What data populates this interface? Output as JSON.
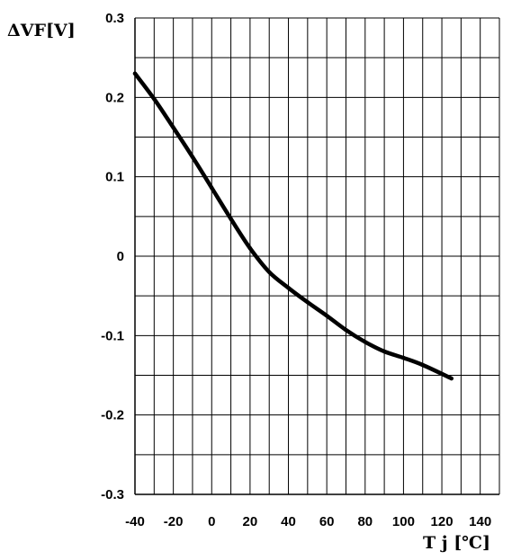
{
  "chart_data": {
    "type": "line",
    "title": "",
    "xlabel": "T j [℃]",
    "ylabel": "ΔVF[V]",
    "xlim": [
      -40,
      150
    ],
    "ylim": [
      -0.3,
      0.3
    ],
    "xticks": [
      "-40",
      "-20",
      "0",
      "20",
      "40",
      "60",
      "80",
      "100",
      "120",
      "140"
    ],
    "yticks": [
      "-0.3",
      "-0.2",
      "-0.1",
      "0",
      "0.1",
      "0.2",
      "0.3"
    ],
    "grid": true,
    "series": [
      {
        "x": [
          -40,
          -30,
          -20,
          -10,
          0,
          10,
          20,
          30,
          40,
          50,
          60,
          70,
          80,
          90,
          100,
          110,
          125
        ],
        "y": [
          0.23,
          0.198,
          0.162,
          0.125,
          0.086,
          0.047,
          0.01,
          -0.02,
          -0.04,
          -0.058,
          -0.075,
          -0.093,
          -0.108,
          -0.12,
          -0.128,
          -0.137,
          -0.154
        ]
      }
    ]
  },
  "colors": {
    "line": "#000000",
    "grid": "#000000",
    "background": "#ffffff"
  }
}
